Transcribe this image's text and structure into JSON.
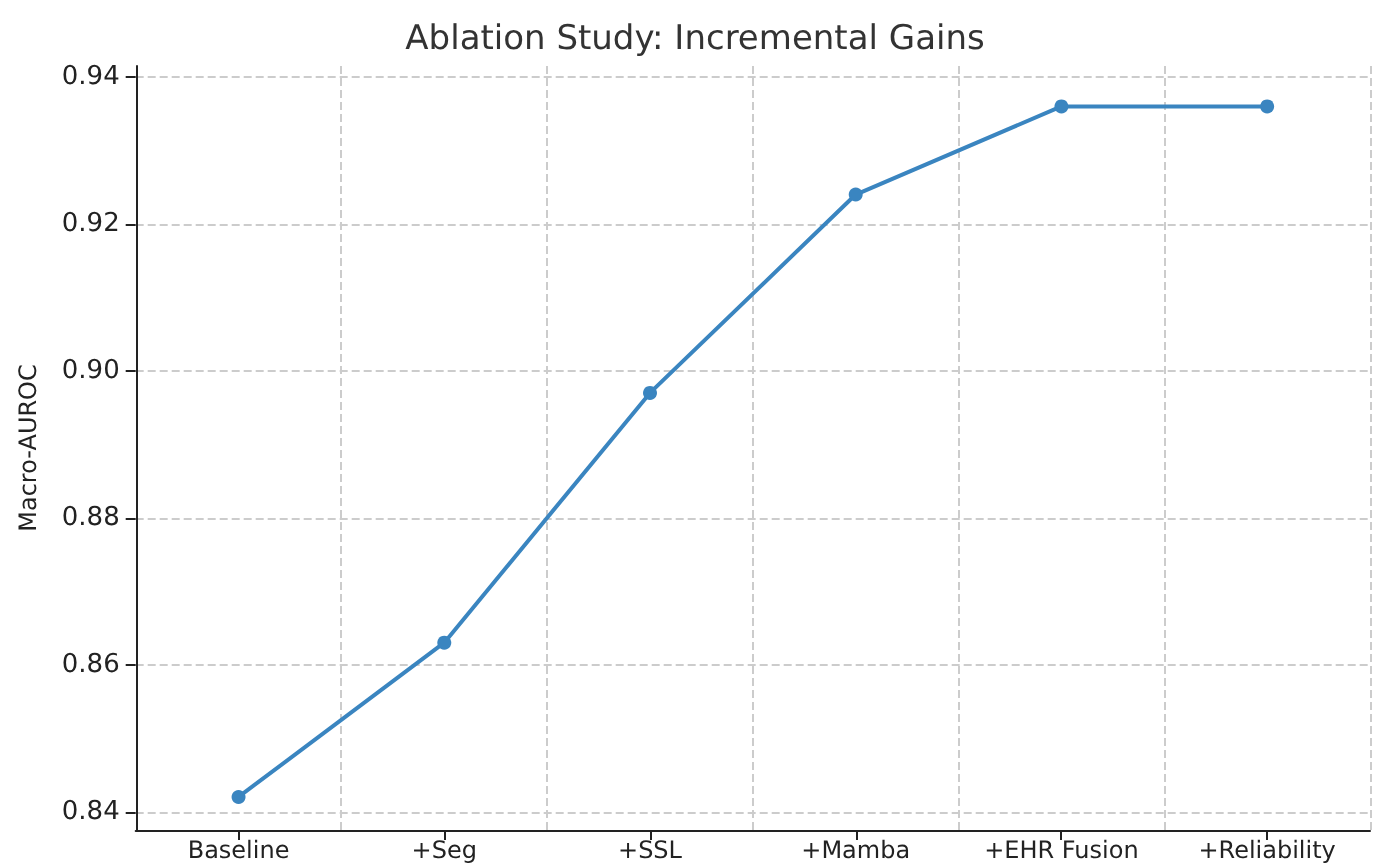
{
  "chart_data": {
    "type": "line",
    "title": "Ablation Study: Incremental Gains",
    "ylabel": "Macro-AUROC",
    "categories": [
      "Baseline",
      "+Seg",
      "+SSL",
      "+Mamba",
      "+EHR Fusion",
      "+Reliability"
    ],
    "values": [
      0.842,
      0.863,
      0.897,
      0.924,
      0.936,
      0.936
    ],
    "color": "#3a85c0",
    "ylim": [
      0.8375,
      0.9415
    ],
    "yticks": [
      {
        "value": 0.84,
        "label": "0.84"
      },
      {
        "value": 0.86,
        "label": "0.86"
      },
      {
        "value": 0.88,
        "label": "0.88"
      },
      {
        "value": 0.9,
        "label": "0.90"
      },
      {
        "value": 0.92,
        "label": "0.92"
      },
      {
        "value": 0.94,
        "label": "0.94"
      }
    ],
    "grid": true,
    "marker": "circle",
    "line_style": "solid"
  }
}
